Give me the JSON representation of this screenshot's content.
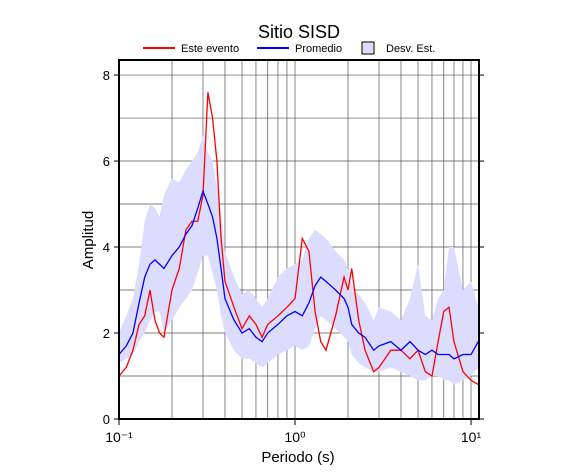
{
  "chart_data": {
    "type": "line",
    "title": "Sitio SISD",
    "xlabel": "Periodo (s)",
    "ylabel": "Amplitud",
    "x_scale": "log",
    "grid": true,
    "xlim": [
      0.1,
      11.1
    ],
    "ylim": [
      0,
      8.35
    ],
    "xticks": [
      {
        "value": 0.1,
        "label": "10⁻¹"
      },
      {
        "value": 1,
        "label": "10⁰"
      },
      {
        "value": 10,
        "label": "10¹"
      }
    ],
    "yticks": [
      0,
      2,
      4,
      6,
      8
    ],
    "legend": "top",
    "x": [
      0.1,
      0.11,
      0.12,
      0.13,
      0.14,
      0.15,
      0.16,
      0.17,
      0.18,
      0.2,
      0.22,
      0.24,
      0.26,
      0.28,
      0.3,
      0.32,
      0.34,
      0.36,
      0.38,
      0.4,
      0.45,
      0.5,
      0.55,
      0.6,
      0.65,
      0.7,
      0.8,
      0.9,
      1.0,
      1.1,
      1.2,
      1.3,
      1.4,
      1.5,
      1.7,
      1.9,
      2.0,
      2.1,
      2.3,
      2.5,
      2.8,
      3.0,
      3.5,
      4,
      4.5,
      5,
      5.5,
      6,
      6.5,
      7,
      7.5,
      8,
      9,
      10,
      11
    ],
    "series": [
      {
        "name": "Este evento",
        "color": "#ff0000",
        "values": [
          1.0,
          1.2,
          1.6,
          2.2,
          2.4,
          3.0,
          2.3,
          2.0,
          1.9,
          3.0,
          3.5,
          4.4,
          4.6,
          4.6,
          5.2,
          7.6,
          7.0,
          6.0,
          4.2,
          3.2,
          2.6,
          2.1,
          2.4,
          2.2,
          1.9,
          2.2,
          2.4,
          2.6,
          2.8,
          4.2,
          3.9,
          2.5,
          1.8,
          1.6,
          2.4,
          3.3,
          3.0,
          3.5,
          2.3,
          1.6,
          1.1,
          1.2,
          1.6,
          1.6,
          1.4,
          1.6,
          1.1,
          1.0,
          1.8,
          2.5,
          2.6,
          1.8,
          1.1,
          0.9,
          0.8
        ]
      },
      {
        "name": "Promedio",
        "color": "#0000ff",
        "values": [
          1.5,
          1.7,
          2.0,
          2.7,
          3.3,
          3.6,
          3.7,
          3.6,
          3.5,
          3.8,
          4.0,
          4.3,
          4.5,
          4.9,
          5.3,
          5.0,
          4.7,
          4.2,
          3.5,
          2.8,
          2.3,
          2.0,
          2.1,
          1.9,
          1.8,
          2.0,
          2.2,
          2.4,
          2.5,
          2.4,
          2.7,
          3.1,
          3.3,
          3.2,
          3.0,
          2.8,
          2.6,
          2.2,
          2.0,
          1.9,
          1.6,
          1.7,
          1.8,
          1.6,
          1.8,
          1.6,
          1.5,
          1.6,
          1.5,
          1.5,
          1.5,
          1.4,
          1.5,
          1.5,
          1.8
        ]
      },
      {
        "name": "Desv. Est.",
        "color": "#dcdcff",
        "upper": [
          2.0,
          2.4,
          2.8,
          3.6,
          4.6,
          5.0,
          4.9,
          4.7,
          5.2,
          5.6,
          5.5,
          5.8,
          6.0,
          6.2,
          6.6,
          6.2,
          6.0,
          5.4,
          4.8,
          3.9,
          3.3,
          2.9,
          3.0,
          2.8,
          2.6,
          2.8,
          3.3,
          3.5,
          3.6,
          3.7,
          4.2,
          4.4,
          4.3,
          4.2,
          3.9,
          3.7,
          3.5,
          3.1,
          2.9,
          2.7,
          2.3,
          2.6,
          2.5,
          2.3,
          2.8,
          3.6,
          2.4,
          2.3,
          2.8,
          3.0,
          4.0,
          4.0,
          3.0,
          3.2,
          2.6
        ],
        "lower": [
          1.3,
          1.4,
          1.5,
          1.8,
          2.0,
          2.3,
          2.5,
          2.5,
          2.0,
          2.3,
          2.6,
          2.8,
          3.0,
          3.4,
          3.8,
          3.8,
          3.4,
          3.0,
          2.4,
          2.0,
          1.6,
          1.4,
          1.4,
          1.3,
          1.2,
          1.3,
          1.5,
          1.6,
          1.7,
          1.6,
          1.7,
          2.1,
          2.4,
          2.3,
          2.1,
          1.9,
          1.8,
          1.5,
          1.3,
          1.2,
          1.1,
          1.1,
          1.2,
          1.1,
          1.0,
          0.9,
          0.9,
          1.0,
          1.0,
          0.9,
          0.9,
          0.8,
          0.9,
          1.0,
          1.2
        ]
      }
    ]
  }
}
